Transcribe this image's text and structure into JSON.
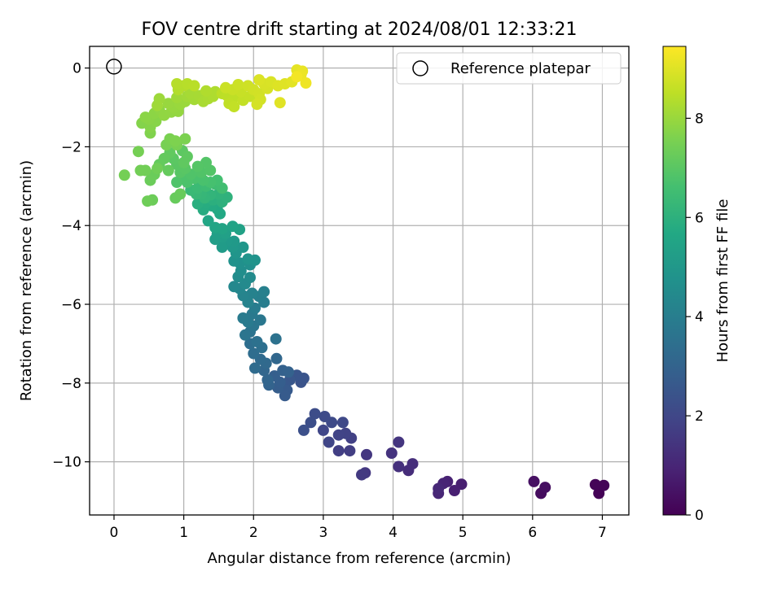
{
  "chart_data": {
    "type": "scatter",
    "title": "FOV centre drift starting at 2024/08/01 12:33:21",
    "xlabel": "Angular distance from reference (arcmin)",
    "ylabel": "Rotation from reference (arcmin)",
    "xlim": [
      -0.35,
      7.38
    ],
    "ylim": [
      -11.35,
      0.55
    ],
    "xticks": [
      "0",
      "1",
      "2",
      "3",
      "4",
      "5",
      "6",
      "7"
    ],
    "yticks": [
      "0",
      "−2",
      "−4",
      "−6",
      "−8",
      "−10"
    ],
    "grid": true,
    "legend": {
      "placement": "top-right",
      "label": "Reference platepar"
    },
    "reference_point": {
      "x": 0,
      "y": 0
    },
    "colorbar": {
      "label": "Hours from first FF file",
      "min": 0,
      "max": 9.45,
      "ticks": [
        "0",
        "2",
        "4",
        "6",
        "8"
      ],
      "colormap": "viridis"
    },
    "series": [
      {
        "points": [
          [
            6.95,
            -10.8,
            0.05
          ],
          [
            7.02,
            -10.6,
            0.08
          ],
          [
            6.9,
            -10.58,
            0.1
          ],
          [
            6.12,
            -10.8,
            0.3
          ],
          [
            6.18,
            -10.65,
            0.35
          ],
          [
            6.02,
            -10.5,
            0.4
          ],
          [
            4.98,
            -10.57,
            0.8
          ],
          [
            4.88,
            -10.73,
            0.85
          ],
          [
            4.78,
            -10.5,
            0.9
          ],
          [
            4.72,
            -10.55,
            0.95
          ],
          [
            4.65,
            -10.8,
            1.0
          ],
          [
            4.65,
            -10.68,
            1.05
          ],
          [
            4.22,
            -10.22,
            1.2
          ],
          [
            4.28,
            -10.05,
            1.25
          ],
          [
            4.08,
            -10.12,
            1.3
          ],
          [
            3.98,
            -9.78,
            1.4
          ],
          [
            4.08,
            -9.5,
            1.45
          ],
          [
            3.62,
            -9.82,
            1.5
          ],
          [
            3.6,
            -10.28,
            1.55
          ],
          [
            3.55,
            -10.33,
            1.6
          ],
          [
            3.38,
            -9.72,
            1.7
          ],
          [
            3.22,
            -9.72,
            1.75
          ],
          [
            3.4,
            -9.4,
            1.8
          ],
          [
            3.32,
            -9.28,
            1.85
          ],
          [
            3.22,
            -9.32,
            1.9
          ],
          [
            3.08,
            -9.5,
            1.95
          ],
          [
            3.0,
            -9.2,
            2.0
          ],
          [
            3.28,
            -9.0,
            2.05
          ],
          [
            3.12,
            -9.0,
            2.1
          ],
          [
            3.02,
            -8.85,
            2.15
          ],
          [
            2.88,
            -8.78,
            2.2
          ],
          [
            2.82,
            -9.0,
            2.25
          ],
          [
            2.72,
            -9.2,
            2.3
          ],
          [
            2.68,
            -7.98,
            2.4
          ],
          [
            2.72,
            -7.88,
            2.45
          ],
          [
            2.62,
            -7.8,
            2.5
          ],
          [
            2.52,
            -7.92,
            2.55
          ],
          [
            2.45,
            -8.05,
            2.6
          ],
          [
            2.48,
            -8.18,
            2.65
          ],
          [
            2.45,
            -8.32,
            2.7
          ],
          [
            2.35,
            -8.12,
            2.75
          ],
          [
            2.38,
            -7.98,
            2.8
          ],
          [
            2.3,
            -7.82,
            2.85
          ],
          [
            2.42,
            -7.68,
            2.9
          ],
          [
            2.5,
            -7.72,
            2.95
          ],
          [
            2.22,
            -8.05,
            3.0
          ],
          [
            2.2,
            -7.92,
            3.05
          ],
          [
            2.15,
            -7.68,
            3.1
          ],
          [
            2.33,
            -7.38,
            3.15
          ],
          [
            2.18,
            -7.5,
            3.2
          ],
          [
            2.1,
            -7.4,
            3.25
          ],
          [
            2.02,
            -7.62,
            3.3
          ],
          [
            2.0,
            -7.25,
            3.35
          ],
          [
            1.95,
            -7.0,
            3.4
          ],
          [
            2.12,
            -7.1,
            3.45
          ],
          [
            2.05,
            -6.95,
            3.5
          ],
          [
            2.32,
            -6.88,
            3.55
          ],
          [
            1.95,
            -6.7,
            3.6
          ],
          [
            1.88,
            -6.78,
            3.65
          ],
          [
            2.0,
            -6.55,
            3.7
          ],
          [
            2.1,
            -6.4,
            3.75
          ],
          [
            1.98,
            -6.25,
            3.8
          ],
          [
            1.92,
            -6.45,
            3.85
          ],
          [
            1.85,
            -6.35,
            3.9
          ],
          [
            2.02,
            -6.1,
            3.95
          ],
          [
            2.15,
            -5.95,
            4.0
          ],
          [
            2.08,
            -5.8,
            4.05
          ],
          [
            2.15,
            -5.68,
            4.1
          ],
          [
            1.98,
            -5.72,
            4.15
          ],
          [
            1.92,
            -5.95,
            4.2
          ],
          [
            1.85,
            -5.78,
            4.25
          ],
          [
            1.8,
            -5.6,
            4.3
          ],
          [
            1.72,
            -5.55,
            4.4
          ],
          [
            1.88,
            -5.48,
            4.45
          ],
          [
            1.95,
            -5.32,
            4.5
          ],
          [
            1.78,
            -5.3,
            4.55
          ],
          [
            1.82,
            -5.15,
            4.6
          ],
          [
            1.95,
            -5.0,
            4.65
          ],
          [
            1.8,
            -4.95,
            4.7
          ],
          [
            1.72,
            -4.9,
            4.75
          ],
          [
            2.02,
            -4.88,
            4.8
          ],
          [
            1.92,
            -4.85,
            4.85
          ],
          [
            1.75,
            -4.7,
            4.9
          ],
          [
            1.85,
            -4.55,
            4.95
          ],
          [
            1.7,
            -4.55,
            5.0
          ],
          [
            1.72,
            -4.4,
            5.05
          ],
          [
            1.62,
            -4.4,
            5.1
          ],
          [
            1.55,
            -4.55,
            5.15
          ],
          [
            1.55,
            -4.3,
            5.2
          ],
          [
            1.45,
            -4.35,
            5.25
          ],
          [
            1.48,
            -4.22,
            5.3
          ],
          [
            1.6,
            -4.2,
            5.35
          ],
          [
            1.8,
            -4.1,
            5.4
          ],
          [
            1.7,
            -4.02,
            5.45
          ],
          [
            1.55,
            -4.08,
            5.5
          ],
          [
            1.45,
            -4.05,
            5.55
          ],
          [
            1.35,
            -3.88,
            5.6
          ],
          [
            1.52,
            -3.7,
            5.65
          ],
          [
            1.48,
            -3.58,
            5.7
          ],
          [
            1.4,
            -3.5,
            5.75
          ],
          [
            1.28,
            -3.6,
            5.8
          ],
          [
            1.32,
            -3.42,
            5.85
          ],
          [
            1.2,
            -3.45,
            5.9
          ],
          [
            1.42,
            -3.35,
            5.95
          ],
          [
            1.55,
            -3.4,
            6.0
          ],
          [
            1.62,
            -3.28,
            6.05
          ],
          [
            1.5,
            -3.2,
            6.1
          ],
          [
            1.38,
            -3.22,
            6.15
          ],
          [
            1.3,
            -3.3,
            6.2
          ],
          [
            1.25,
            -3.2,
            6.25
          ],
          [
            1.18,
            -3.2,
            6.3
          ],
          [
            1.1,
            -3.1,
            6.35
          ],
          [
            1.2,
            -3.05,
            6.4
          ],
          [
            1.32,
            -3.0,
            6.45
          ],
          [
            1.45,
            -2.95,
            6.5
          ],
          [
            1.55,
            -3.05,
            6.55
          ],
          [
            1.48,
            -2.85,
            6.6
          ],
          [
            1.38,
            -2.9,
            6.65
          ],
          [
            1.28,
            -2.85,
            6.7
          ],
          [
            1.15,
            -2.8,
            6.72
          ],
          [
            1.05,
            -2.9,
            6.75
          ],
          [
            1.0,
            -2.8,
            6.78
          ],
          [
            0.9,
            -2.9,
            6.8
          ],
          [
            1.1,
            -2.7,
            6.82
          ],
          [
            1.25,
            -2.65,
            6.85
          ],
          [
            1.38,
            -2.6,
            6.88
          ],
          [
            1.32,
            -2.4,
            6.9
          ],
          [
            1.2,
            -2.5,
            6.92
          ],
          [
            0.95,
            -2.65,
            6.95
          ],
          [
            1.02,
            -2.55,
            6.98
          ],
          [
            0.9,
            -2.45,
            7.0
          ],
          [
            0.85,
            -2.3,
            7.02
          ],
          [
            0.98,
            -2.1,
            7.05
          ],
          [
            1.05,
            -2.25,
            7.08
          ],
          [
            1.0,
            -2.4,
            7.1
          ],
          [
            0.8,
            -2.15,
            7.12
          ],
          [
            0.72,
            -2.3,
            7.15
          ],
          [
            0.65,
            -2.45,
            7.18
          ],
          [
            0.78,
            -2.6,
            7.2
          ],
          [
            0.88,
            -3.3,
            7.22
          ],
          [
            0.95,
            -3.2,
            7.25
          ],
          [
            0.58,
            -2.7,
            7.28
          ],
          [
            0.52,
            -2.85,
            7.3
          ],
          [
            0.55,
            -3.35,
            7.32
          ],
          [
            0.48,
            -3.38,
            7.35
          ],
          [
            0.62,
            -2.55,
            7.38
          ],
          [
            0.45,
            -2.6,
            7.4
          ],
          [
            0.38,
            -2.6,
            7.42
          ],
          [
            0.15,
            -2.72,
            7.45
          ],
          [
            0.35,
            -2.12,
            7.48
          ],
          [
            0.75,
            -1.95,
            7.5
          ],
          [
            0.9,
            -1.95,
            7.52
          ],
          [
            0.8,
            -1.8,
            7.55
          ],
          [
            1.02,
            -1.8,
            7.58
          ],
          [
            0.88,
            -1.85,
            7.6
          ],
          [
            0.52,
            -1.65,
            7.65
          ],
          [
            0.4,
            -1.4,
            7.7
          ],
          [
            0.52,
            -1.5,
            7.72
          ],
          [
            0.6,
            -1.35,
            7.75
          ],
          [
            0.5,
            -1.3,
            7.78
          ],
          [
            0.45,
            -1.25,
            7.8
          ],
          [
            0.58,
            -1.15,
            7.82
          ],
          [
            0.65,
            -1.05,
            7.85
          ],
          [
            0.72,
            -1.2,
            7.88
          ],
          [
            0.82,
            -1.12,
            7.9
          ],
          [
            0.92,
            -1.1,
            7.92
          ],
          [
            0.85,
            -1.0,
            7.95
          ],
          [
            0.78,
            -0.9,
            7.98
          ],
          [
            0.95,
            -0.92,
            8.0
          ],
          [
            1.02,
            -0.85,
            8.02
          ],
          [
            0.65,
            -0.78,
            8.05
          ],
          [
            0.62,
            -0.95,
            8.08
          ],
          [
            0.9,
            -0.75,
            8.1
          ],
          [
            1.05,
            -0.72,
            8.12
          ],
          [
            1.15,
            -0.8,
            8.15
          ],
          [
            1.1,
            -0.65,
            8.18
          ],
          [
            1.22,
            -0.7,
            8.2
          ],
          [
            1.28,
            -0.85,
            8.22
          ],
          [
            1.35,
            -0.78,
            8.25
          ],
          [
            1.42,
            -0.72,
            8.28
          ],
          [
            1.45,
            -0.6,
            8.3
          ],
          [
            1.32,
            -0.58,
            8.32
          ],
          [
            0.92,
            -0.55,
            8.35
          ],
          [
            1.0,
            -0.45,
            8.38
          ],
          [
            0.9,
            -0.4,
            8.4
          ],
          [
            1.05,
            -0.4,
            8.42
          ],
          [
            1.15,
            -0.45,
            8.45
          ],
          [
            1.55,
            -0.65,
            8.48
          ],
          [
            1.62,
            -0.7,
            8.5
          ],
          [
            1.72,
            -0.75,
            8.52
          ],
          [
            1.65,
            -0.9,
            8.55
          ],
          [
            1.72,
            -0.98,
            8.58
          ],
          [
            1.85,
            -0.82,
            8.6
          ],
          [
            1.95,
            -0.72,
            8.62
          ],
          [
            1.82,
            -0.6,
            8.65
          ],
          [
            1.7,
            -0.55,
            8.68
          ],
          [
            1.6,
            -0.5,
            8.7
          ],
          [
            1.78,
            -0.42,
            8.72
          ],
          [
            1.92,
            -0.45,
            8.75
          ],
          [
            2.0,
            -0.55,
            8.78
          ],
          [
            2.08,
            -0.65,
            8.8
          ],
          [
            2.1,
            -0.8,
            8.82
          ],
          [
            2.05,
            -0.92,
            8.85
          ],
          [
            2.2,
            -0.52,
            8.88
          ],
          [
            2.15,
            -0.4,
            8.9
          ],
          [
            2.25,
            -0.35,
            8.92
          ],
          [
            2.08,
            -0.3,
            8.95
          ],
          [
            2.35,
            -0.45,
            8.98
          ],
          [
            2.45,
            -0.4,
            9.0
          ],
          [
            2.38,
            -0.88,
            9.02
          ],
          [
            2.55,
            -0.35,
            9.05
          ],
          [
            2.62,
            -0.05,
            9.1
          ],
          [
            2.7,
            -0.08,
            9.15
          ],
          [
            2.68,
            -0.18,
            9.2
          ],
          [
            2.75,
            -0.38,
            9.25
          ],
          [
            2.62,
            -0.22,
            9.3
          ]
        ]
      }
    ]
  }
}
